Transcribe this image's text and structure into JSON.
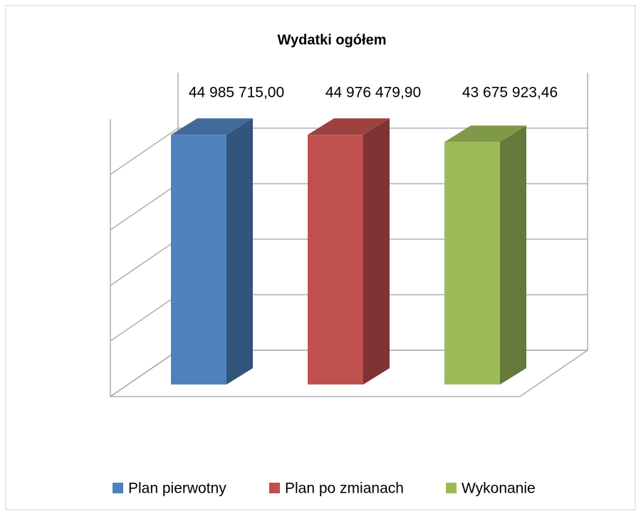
{
  "chart_data": {
    "type": "bar",
    "title": "Wydatki ogółem",
    "series": [
      {
        "name": "Plan pierwotny",
        "color": "#4f81bd",
        "values": [
          44985715.0
        ],
        "value_labels": [
          "44 985 715,00"
        ]
      },
      {
        "name": "Plan po zmianach",
        "color": "#c0504d",
        "values": [
          44976479.9
        ],
        "value_labels": [
          "44 976 479,90"
        ]
      },
      {
        "name": "Wykonanie",
        "color": "#9bbb59",
        "values": [
          43675923.46
        ],
        "value_labels": [
          "43 675 923,46"
        ]
      }
    ],
    "ylim": [
      0,
      50000000
    ],
    "yticks": [
      0,
      10000000,
      20000000,
      30000000,
      40000000
    ],
    "grid": true,
    "legend": "bottom"
  }
}
